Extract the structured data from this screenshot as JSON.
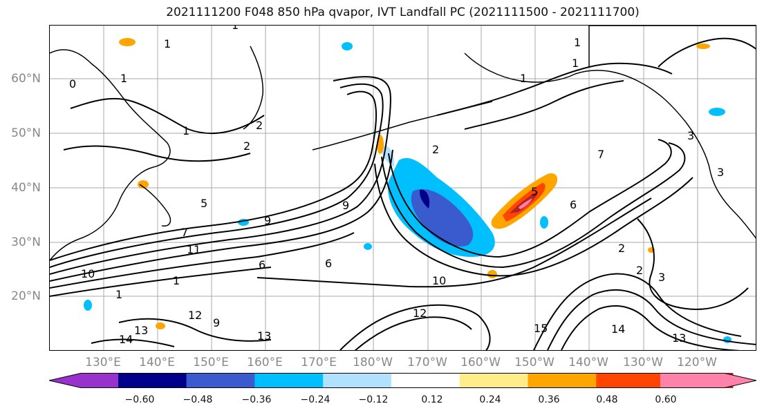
{
  "title": "2021111200 F048 850 hPa qvapor, IVT Landfall PC (2021111500 - 2021111700)",
  "lat_labels": [
    "60°N",
    "50°N",
    "40°N",
    "30°N",
    "20°N"
  ],
  "lon_labels": [
    "130°E",
    "140°E",
    "150°E",
    "160°E",
    "170°E",
    "180°W",
    "170°W",
    "160°W",
    "150°W",
    "140°W",
    "130°W",
    "120°W"
  ],
  "colorbar": {
    "colors": [
      "#9932cc",
      "#00008b",
      "#3a5bcd",
      "#00bfff",
      "#b0e2ff",
      "#ffffff",
      "#ffec8b",
      "#ffa500",
      "#ff4500",
      "#b22222",
      "#ff82ab"
    ],
    "tick_labels": [
      "−0.60",
      "−0.48",
      "−0.36",
      "−0.24",
      "−0.12",
      "0.12",
      "0.24",
      "0.36",
      "0.48",
      "0.60"
    ],
    "extend": "both"
  },
  "contour_labels": [
    "1",
    "1",
    "0",
    "1",
    "1",
    "2",
    "1",
    "2",
    "1",
    "3",
    "9",
    "9",
    "5",
    "6",
    "7",
    "2",
    "1",
    "1",
    "10",
    "6",
    "11",
    "12",
    "12",
    "13",
    "14",
    "13",
    "9",
    "3",
    "5",
    "2",
    "3",
    "15",
    "10",
    "13",
    "14",
    "2",
    "6",
    "7",
    "1"
  ],
  "colors": {
    "axis_label": "#888888",
    "land_outline": "#000000",
    "grid": "#aaaaaa"
  }
}
